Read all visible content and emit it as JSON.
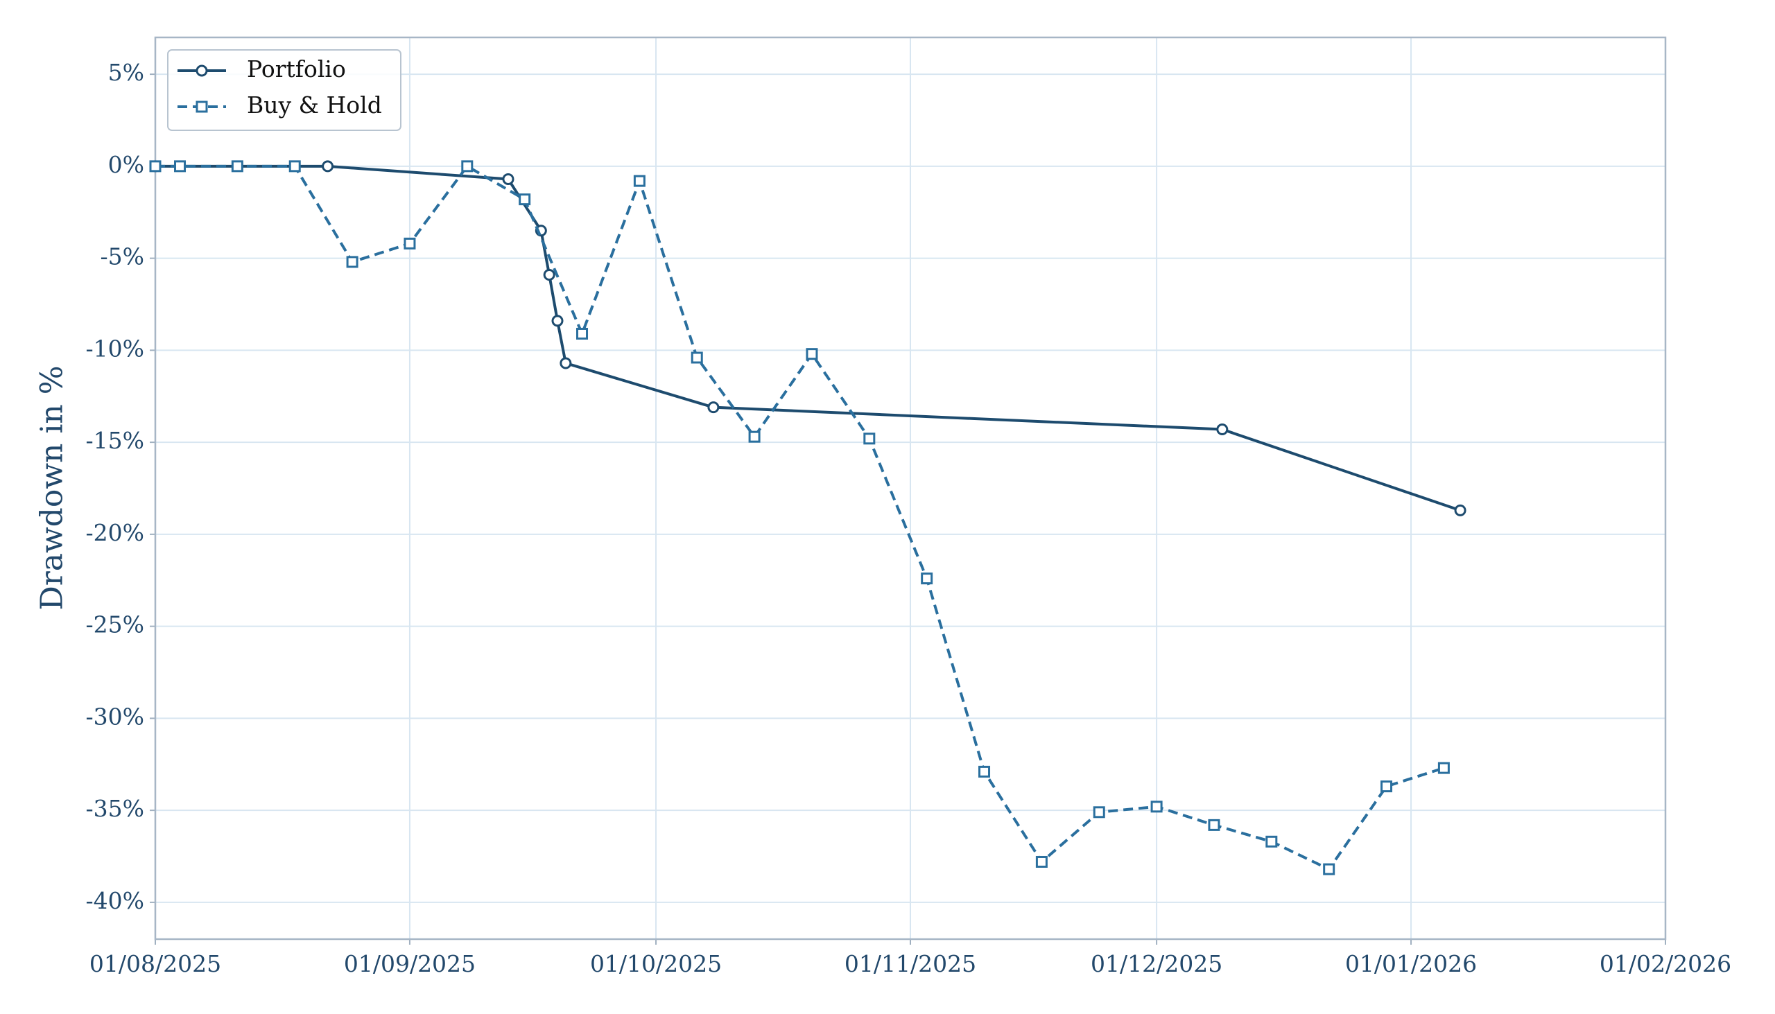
{
  "chart_data": {
    "type": "line",
    "y_label": "Drawdown in %",
    "ylim": [
      -42,
      7
    ],
    "yticks": [
      {
        "value": 5,
        "label": "5%"
      },
      {
        "value": 0,
        "label": "0%"
      },
      {
        "value": -5,
        "label": "-5%"
      },
      {
        "value": -10,
        "label": "-10%"
      },
      {
        "value": -15,
        "label": "-15%"
      },
      {
        "value": -20,
        "label": "-20%"
      },
      {
        "value": -25,
        "label": "-25%"
      },
      {
        "value": -30,
        "label": "-30%"
      },
      {
        "value": -35,
        "label": "-35%"
      },
      {
        "value": -40,
        "label": "-40%"
      }
    ],
    "xlim": [
      "2025-08-01",
      "2026-02-01"
    ],
    "xticks": [
      {
        "value": "2025-08-01",
        "label": "01/08/2025"
      },
      {
        "value": "2025-09-01",
        "label": "01/09/2025"
      },
      {
        "value": "2025-10-01",
        "label": "01/10/2025"
      },
      {
        "value": "2025-11-01",
        "label": "01/11/2025"
      },
      {
        "value": "2025-12-01",
        "label": "01/12/2025"
      },
      {
        "value": "2026-01-01",
        "label": "01/01/2026"
      },
      {
        "value": "2026-02-01",
        "label": "01/02/2026"
      }
    ],
    "grid": true,
    "legend": "upper left",
    "series": [
      {
        "name": "Portfolio",
        "color": "#1d4b6e",
        "marker": "circle",
        "dash": false,
        "x": [
          "2025-08-01",
          "2025-08-22",
          "2025-09-13",
          "2025-09-17",
          "2025-09-18",
          "2025-09-19",
          "2025-09-20",
          "2025-10-08",
          "2025-12-09",
          "2026-01-07"
        ],
        "values": [
          0,
          0,
          -0.7,
          -3.5,
          -5.9,
          -8.4,
          -10.7,
          -13.1,
          -14.3,
          -18.7
        ]
      },
      {
        "name": "Buy & Hold",
        "color": "#2a6f9e",
        "marker": "square",
        "dash": true,
        "x": [
          "2025-08-01",
          "2025-08-04",
          "2025-08-11",
          "2025-08-18",
          "2025-08-25",
          "2025-09-01",
          "2025-09-08",
          "2025-09-15",
          "2025-09-22",
          "2025-09-29",
          "2025-10-06",
          "2025-10-13",
          "2025-10-20",
          "2025-10-27",
          "2025-11-03",
          "2025-11-10",
          "2025-11-17",
          "2025-11-24",
          "2025-12-01",
          "2025-12-08",
          "2025-12-15",
          "2025-12-22",
          "2025-12-29",
          "2026-01-05"
        ],
        "values": [
          0,
          0,
          0,
          0,
          -5.2,
          -4.2,
          0,
          -1.8,
          -9.1,
          -0.8,
          -10.4,
          -14.7,
          -10.2,
          -14.8,
          -22.4,
          -32.9,
          -37.8,
          -35.1,
          -34.8,
          -35.8,
          -36.7,
          -38.2,
          -33.7,
          -32.7
        ]
      }
    ]
  }
}
